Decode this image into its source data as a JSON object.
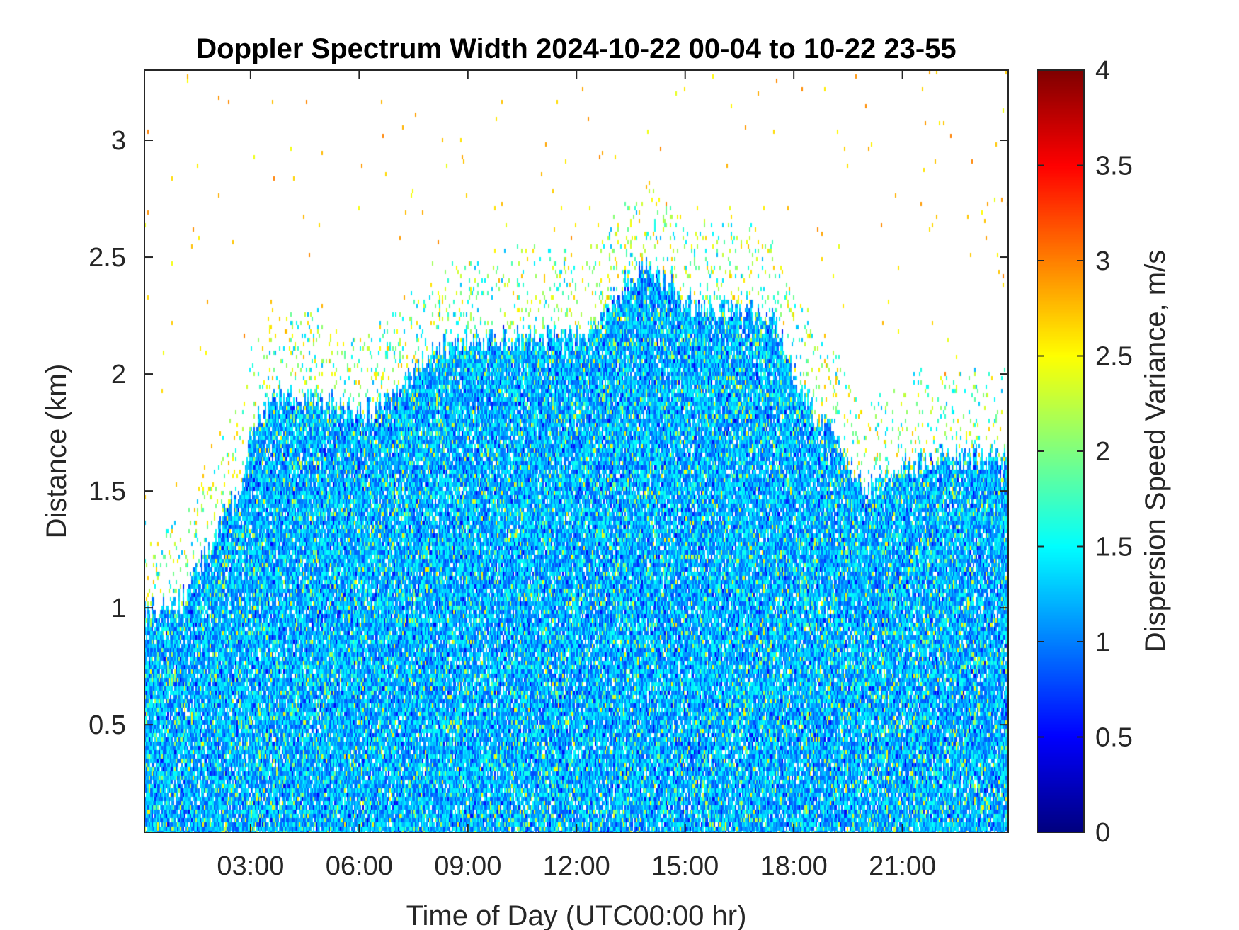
{
  "chart_data": {
    "type": "heatmap",
    "title": "Doppler Spectrum Width 2024-10-22 00-04 to 10-22 23-55",
    "xlabel": "Time of Day (UTC00:00 hr)",
    "ylabel": "Distance (km)",
    "xlim": [
      0.07,
      23.92
    ],
    "ylim": [
      0.04,
      3.3
    ],
    "x_ticks": [
      {
        "value": 3,
        "label": "03:00"
      },
      {
        "value": 6,
        "label": "06:00"
      },
      {
        "value": 9,
        "label": "09:00"
      },
      {
        "value": 12,
        "label": "12:00"
      },
      {
        "value": 15,
        "label": "15:00"
      },
      {
        "value": 18,
        "label": "18:00"
      },
      {
        "value": 21,
        "label": "21:00"
      }
    ],
    "y_ticks": [
      {
        "value": 0.5,
        "label": "0.5"
      },
      {
        "value": 1,
        "label": "1"
      },
      {
        "value": 1.5,
        "label": "1.5"
      },
      {
        "value": 2,
        "label": "2"
      },
      {
        "value": 2.5,
        "label": "2.5"
      },
      {
        "value": 3,
        "label": "3"
      }
    ],
    "colorbar": {
      "label": "Dispersion Speed Variance, m/s",
      "colormap": "jet",
      "clim": [
        0,
        4
      ],
      "ticks": [
        {
          "value": 0,
          "label": "0"
        },
        {
          "value": 0.5,
          "label": "0.5"
        },
        {
          "value": 1,
          "label": "1"
        },
        {
          "value": 1.5,
          "label": "1.5"
        },
        {
          "value": 2,
          "label": "2"
        },
        {
          "value": 2.5,
          "label": "2.5"
        },
        {
          "value": 3,
          "label": "3"
        },
        {
          "value": 3.5,
          "label": "3.5"
        },
        {
          "value": 4,
          "label": "4"
        }
      ]
    },
    "echo_top_km": [
      [
        0.0,
        1.0
      ],
      [
        1.0,
        1.0
      ],
      [
        2.0,
        1.3
      ],
      [
        2.7,
        1.5
      ],
      [
        3.0,
        1.75
      ],
      [
        3.7,
        1.9
      ],
      [
        4.7,
        1.9
      ],
      [
        5.7,
        1.85
      ],
      [
        6.5,
        1.85
      ],
      [
        7.0,
        1.9
      ],
      [
        8.0,
        2.1
      ],
      [
        9.0,
        2.15
      ],
      [
        10.0,
        2.15
      ],
      [
        11.0,
        2.15
      ],
      [
        12.0,
        2.15
      ],
      [
        13.0,
        2.3
      ],
      [
        13.5,
        2.42
      ],
      [
        14.0,
        2.47
      ],
      [
        14.5,
        2.4
      ],
      [
        15.0,
        2.3
      ],
      [
        16.0,
        2.28
      ],
      [
        17.0,
        2.25
      ],
      [
        17.5,
        2.25
      ],
      [
        18.0,
        2.0
      ],
      [
        18.5,
        1.85
      ],
      [
        19.0,
        1.75
      ],
      [
        20.0,
        1.5
      ],
      [
        21.0,
        1.6
      ],
      [
        22.0,
        1.65
      ],
      [
        23.92,
        1.65
      ]
    ],
    "typical_values_m_s": [
      0.8,
      1.6
    ],
    "grid": false
  }
}
